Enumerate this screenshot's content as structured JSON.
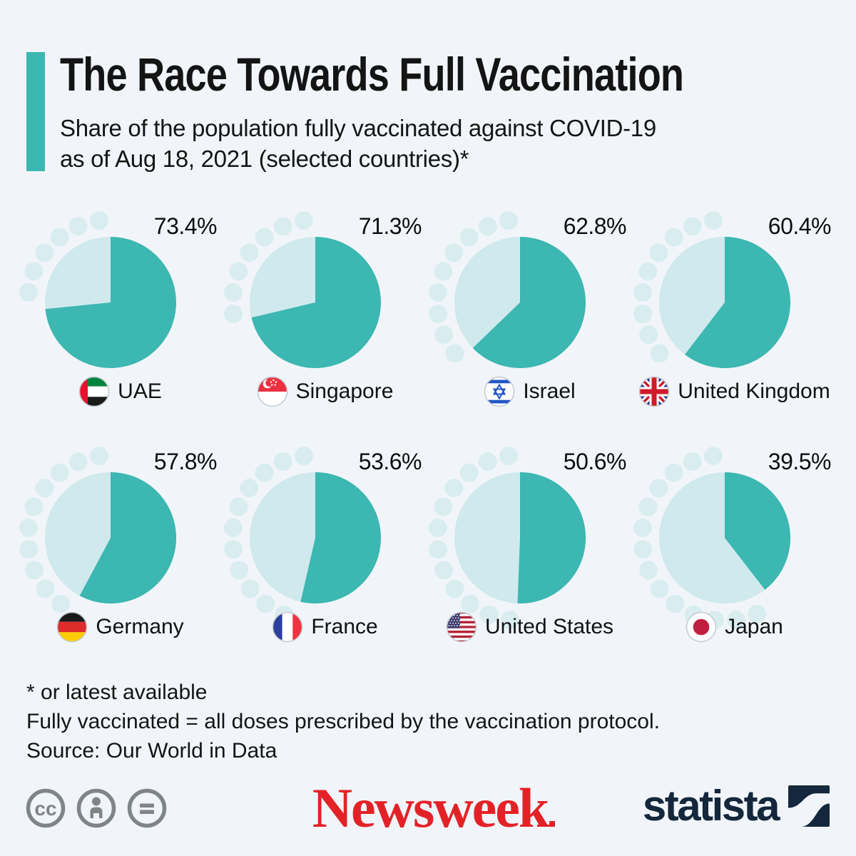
{
  "page": {
    "background": "#f1f5f9"
  },
  "header": {
    "accent_color": "#3cb7b2",
    "title": "The Race Towards Full Vaccination",
    "subtitle_line1": "Share of the population fully vaccinated against COVID-19",
    "subtitle_line2": "as of Aug 18, 2021 (selected countries)*"
  },
  "chart_data": {
    "type": "pie",
    "unit": "%",
    "description": "Share of the population fully vaccinated against COVID-19, one pie per country, filled clockwise from 12 o'clock",
    "colors": {
      "filled": "#3cb7b2",
      "remainder": "#cfe9ec",
      "dots": "#d9edf0"
    },
    "series": [
      {
        "country": "UAE",
        "value": 73.4,
        "flag": "uae"
      },
      {
        "country": "Singapore",
        "value": 71.3,
        "flag": "singapore"
      },
      {
        "country": "Israel",
        "value": 62.8,
        "flag": "israel"
      },
      {
        "country": "United Kingdom",
        "value": 60.4,
        "flag": "united-kingdom"
      },
      {
        "country": "Germany",
        "value": 57.8,
        "flag": "germany"
      },
      {
        "country": "France",
        "value": 53.6,
        "flag": "france"
      },
      {
        "country": "United States",
        "value": 50.6,
        "flag": "united-states"
      },
      {
        "country": "Japan",
        "value": 39.5,
        "flag": "japan"
      }
    ]
  },
  "footnotes": {
    "line1": "* or latest available",
    "line2": "Fully vaccinated = all doses prescribed by the vaccination protocol.",
    "line3": "Source: Our World in Data"
  },
  "branding": {
    "license_icons": [
      "cc-icon",
      "attribution-icon",
      "no-derivatives-icon"
    ],
    "license_icon_color": "#7f8487",
    "newsweek_wordmark": "Newsweek",
    "newsweek_color": "#e32227",
    "statista_wordmark": "statista",
    "statista_color": "#14273c"
  }
}
